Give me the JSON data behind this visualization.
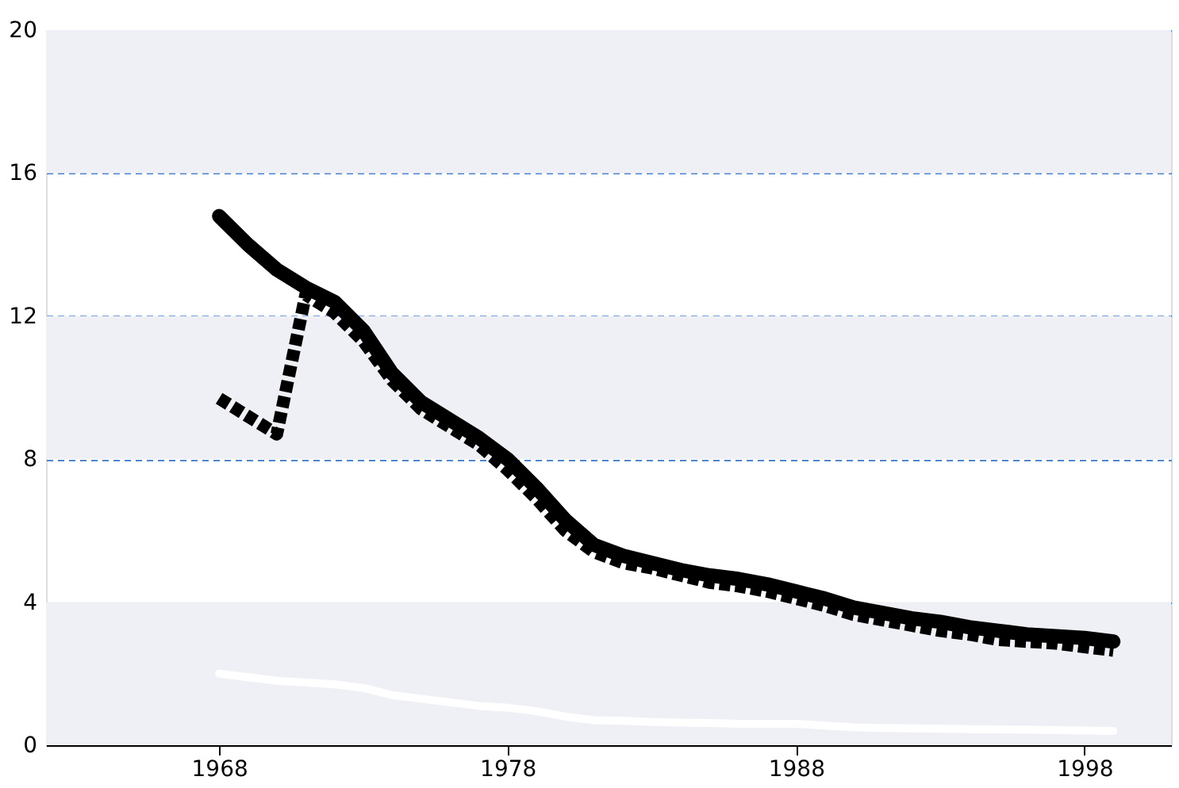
{
  "chart_data": {
    "type": "line",
    "x": [
      1968,
      1969,
      1970,
      1971,
      1972,
      1973,
      1974,
      1975,
      1976,
      1977,
      1978,
      1979,
      1980,
      1981,
      1982,
      1983,
      1984,
      1985,
      1986,
      1987,
      1988,
      1989,
      1990,
      1991,
      1992,
      1993,
      1994,
      1995,
      1996,
      1997,
      1998,
      1999
    ],
    "series": [
      {
        "color": "#000000",
        "line_style": "solid",
        "values": [
          14.8,
          14.0,
          13.3,
          12.8,
          12.4,
          11.6,
          10.4,
          9.6,
          9.1,
          8.6,
          8.0,
          7.2,
          6.3,
          5.6,
          5.3,
          5.1,
          4.9,
          4.75,
          4.65,
          4.5,
          4.3,
          4.1,
          3.85,
          3.7,
          3.55,
          3.45,
          3.3,
          3.2,
          3.1,
          3.05,
          3.0,
          2.9
        ]
      },
      {
        "color": "#000000",
        "line_style": "dotted",
        "values": [
          9.7,
          9.2,
          8.7,
          12.6,
          12.1,
          11.3,
          10.2,
          9.4,
          8.9,
          8.4,
          7.7,
          6.9,
          6.0,
          5.4,
          5.1,
          4.95,
          4.75,
          4.55,
          4.45,
          4.3,
          4.1,
          3.9,
          3.65,
          3.5,
          3.35,
          3.2,
          3.1,
          2.95,
          2.9,
          2.85,
          2.75,
          2.65
        ]
      },
      {
        "color": "#ffffff",
        "line_style": "solid",
        "values": [
          2.0,
          1.9,
          1.8,
          1.75,
          1.7,
          1.6,
          1.4,
          1.3,
          1.2,
          1.1,
          1.05,
          0.95,
          0.8,
          0.7,
          0.68,
          0.65,
          0.63,
          0.62,
          0.6,
          0.6,
          0.6,
          0.55,
          0.5,
          0.48,
          0.47,
          0.46,
          0.45,
          0.44,
          0.43,
          0.42,
          0.41,
          0.4
        ]
      }
    ],
    "xlim": [
      1962,
      2001
    ],
    "xticks": [
      1968,
      1978,
      1988,
      1998
    ],
    "ylim": [
      0,
      20
    ],
    "yticks": [
      0,
      4,
      8,
      12,
      16,
      20
    ],
    "grid": "y",
    "marker": "none",
    "bands": [
      {
        "axis": "y",
        "from": 0,
        "to": 4,
        "color": "#eff0f5"
      },
      {
        "axis": "y",
        "from": 8,
        "to": 12,
        "color": "#eff0f5"
      },
      {
        "axis": "y",
        "from": 16,
        "to": 20,
        "color": "#eff0f5"
      }
    ]
  }
}
